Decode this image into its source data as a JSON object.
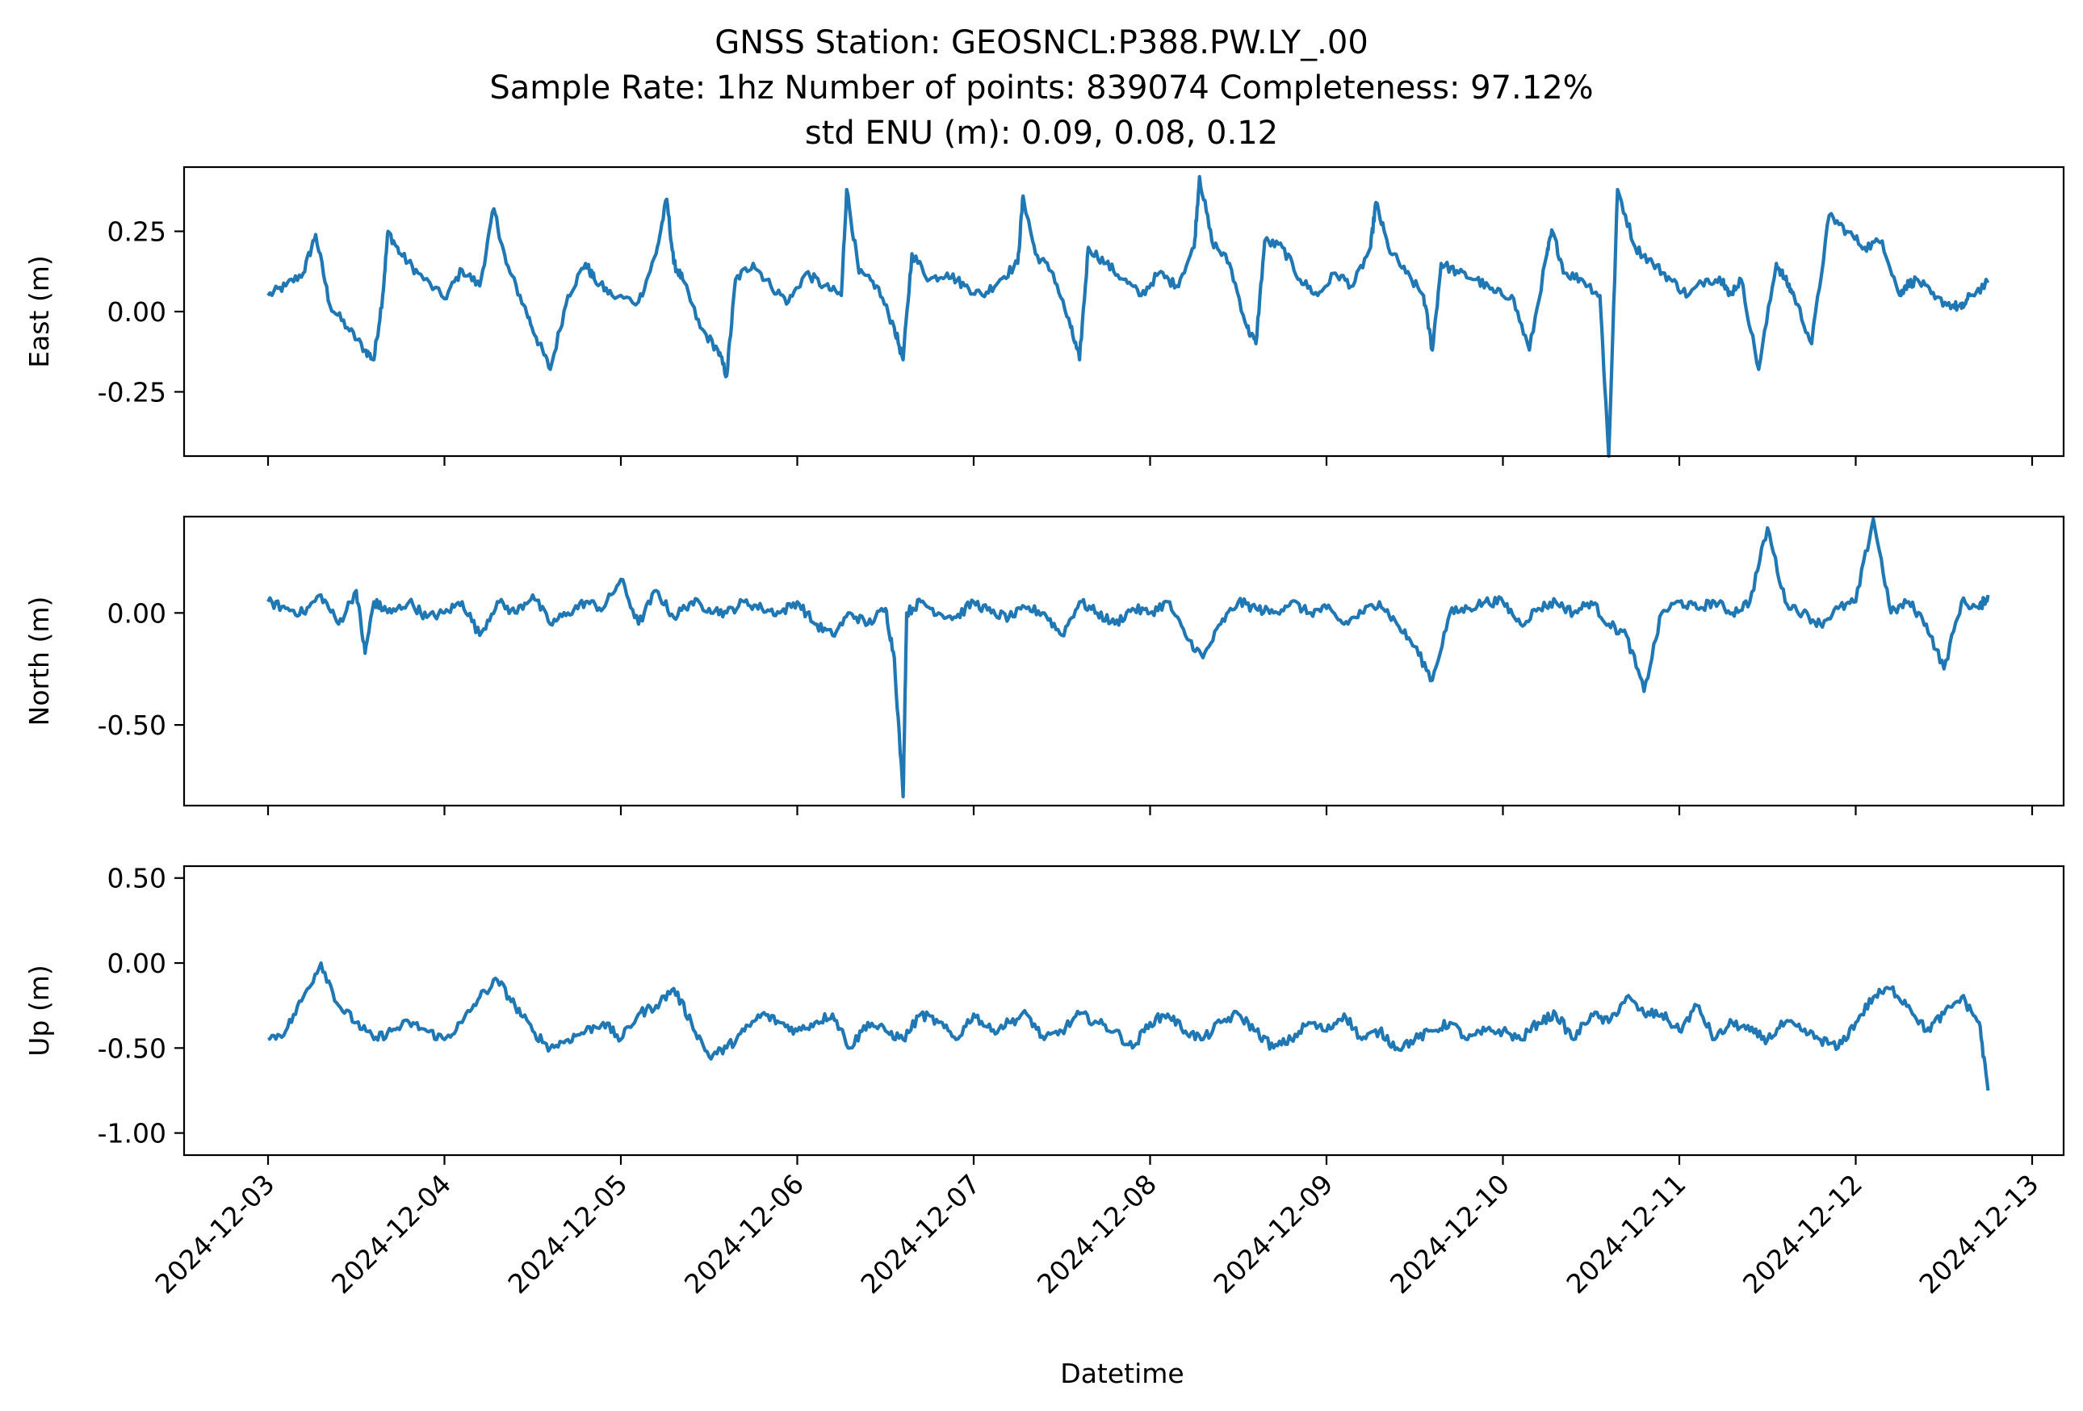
{
  "chart_data": {
    "type": "line",
    "title_lines": [
      "GNSS Station: GEOSNCL:P388.PW.LY_.00",
      "Sample Rate: 1hz   Number of points: 839074    Completeness:  97.12%",
      "std ENU (m):  0.09, 0.08, 0.12"
    ],
    "xlabel": "Datetime",
    "x_ticks": [
      "2024-12-03",
      "2024-12-04",
      "2024-12-05",
      "2024-12-06",
      "2024-12-07",
      "2024-12-08",
      "2024-12-09",
      "2024-12-10",
      "2024-12-11",
      "2024-12-12",
      "2024-12-13"
    ],
    "x_range": [
      "2024-12-02T12:00",
      "2024-12-13T06:00"
    ],
    "line_color": "#1f77b4",
    "grid": false,
    "legend": "none",
    "panels": [
      {
        "id": "east",
        "ylabel": "East (m)",
        "ylim": [
          -0.45,
          0.45
        ],
        "yticks": [
          0.25,
          0.0,
          -0.25
        ],
        "ytick_labels": [
          "0.25",
          "0.00",
          "-0.25"
        ],
        "series": [
          {
            "x_days": [
              0,
              0.1,
              0.2,
              0.27,
              0.35,
              0.45,
              0.55,
              0.6,
              0.65,
              0.68,
              0.75,
              0.85,
              1.0,
              1.1,
              1.2,
              1.28,
              1.35,
              1.45,
              1.52,
              1.6,
              1.7,
              1.8,
              1.85,
              1.95,
              2.1,
              2.2,
              2.26,
              2.3,
              2.35,
              2.45,
              2.55,
              2.6,
              2.65,
              2.75,
              2.85,
              2.95,
              3.05,
              3.15,
              3.25,
              3.28,
              3.35,
              3.45,
              3.55,
              3.6,
              3.65,
              3.75,
              3.85,
              3.95,
              4.05,
              4.15,
              4.25,
              4.28,
              4.35,
              4.45,
              4.55,
              4.6,
              4.65,
              4.75,
              4.85,
              4.95,
              5.05,
              5.15,
              5.25,
              5.28,
              5.35,
              5.45,
              5.55,
              5.6,
              5.65,
              5.75,
              5.85,
              5.95,
              6.05,
              6.15,
              6.25,
              6.28,
              6.35,
              6.45,
              6.55,
              6.6,
              6.65,
              6.75,
              6.85,
              6.95,
              7.05,
              7.15,
              7.25,
              7.28,
              7.35,
              7.45,
              7.55,
              7.6,
              7.65,
              7.75,
              7.85,
              7.95,
              8.05,
              8.15,
              8.25,
              8.28,
              8.35,
              8.45,
              8.55,
              8.6,
              8.65,
              8.75,
              8.85,
              8.95,
              9.05,
              9.15,
              9.25,
              9.28,
              9.35,
              9.45,
              9.55,
              9.6,
              9.65,
              9.75
            ],
            "values": [
              0.05,
              0.08,
              0.12,
              0.24,
              0.02,
              -0.05,
              -0.12,
              -0.15,
              0.05,
              0.25,
              0.18,
              0.12,
              0.04,
              0.13,
              0.08,
              0.32,
              0.15,
              0.02,
              -0.08,
              -0.18,
              0.05,
              0.15,
              0.1,
              0.05,
              0.03,
              0.18,
              0.35,
              0.15,
              0.1,
              -0.05,
              -0.12,
              -0.2,
              0.1,
              0.15,
              0.08,
              0.03,
              0.12,
              0.08,
              0.05,
              0.38,
              0.12,
              0.08,
              -0.05,
              -0.15,
              0.18,
              0.1,
              0.12,
              0.08,
              0.05,
              0.1,
              0.15,
              0.36,
              0.18,
              0.12,
              -0.05,
              -0.15,
              0.2,
              0.15,
              0.1,
              0.05,
              0.12,
              0.08,
              0.2,
              0.42,
              0.22,
              0.15,
              -0.05,
              -0.1,
              0.22,
              0.2,
              0.1,
              0.05,
              0.12,
              0.08,
              0.2,
              0.34,
              0.2,
              0.12,
              0.05,
              -0.12,
              0.15,
              0.12,
              0.1,
              0.06,
              0.05,
              -0.12,
              0.18,
              0.25,
              0.12,
              0.1,
              0.05,
              -0.45,
              0.38,
              0.2,
              0.15,
              0.1,
              0.05,
              0.1,
              0.1,
              0.05,
              0.1,
              -0.18,
              0.15,
              0.1,
              0.05,
              -0.1,
              0.3,
              0.25,
              0.2,
              0.22,
              0.05,
              0.08,
              0.1,
              0.04,
              0.02,
              0.01,
              0.05,
              0.09
            ]
          }
        ]
      },
      {
        "id": "north",
        "ylabel": "North (m)",
        "ylim": [
          -0.86,
          0.43
        ],
        "yticks": [
          0.0,
          -0.5
        ],
        "ytick_labels": [
          "0.00",
          "-0.50"
        ],
        "series": [
          {
            "x_days": [
              0,
              0.1,
              0.2,
              0.3,
              0.4,
              0.5,
              0.55,
              0.6,
              0.65,
              0.7,
              0.8,
              0.9,
              1.0,
              1.1,
              1.2,
              1.3,
              1.4,
              1.5,
              1.6,
              1.7,
              1.8,
              1.9,
              2.0,
              2.1,
              2.2,
              2.3,
              2.4,
              2.5,
              2.6,
              2.7,
              2.8,
              2.9,
              3.0,
              3.1,
              3.2,
              3.3,
              3.4,
              3.5,
              3.55,
              3.6,
              3.62,
              3.7,
              3.8,
              3.9,
              4.0,
              4.1,
              4.2,
              4.3,
              4.4,
              4.5,
              4.6,
              4.7,
              4.8,
              4.9,
              5.0,
              5.1,
              5.2,
              5.3,
              5.4,
              5.5,
              5.6,
              5.7,
              5.8,
              5.9,
              6.0,
              6.1,
              6.2,
              6.3,
              6.4,
              6.5,
              6.6,
              6.7,
              6.8,
              6.9,
              7.0,
              7.1,
              7.2,
              7.3,
              7.4,
              7.5,
              7.6,
              7.7,
              7.8,
              7.9,
              8.0,
              8.1,
              8.2,
              8.3,
              8.4,
              8.5,
              8.6,
              8.7,
              8.8,
              8.9,
              9.0,
              9.1,
              9.2,
              9.3,
              9.4,
              9.5,
              9.6,
              9.7,
              9.75
            ],
            "values": [
              0.05,
              0.02,
              0.0,
              0.08,
              -0.05,
              0.1,
              -0.18,
              0.05,
              0.02,
              0.0,
              0.05,
              -0.02,
              0.0,
              0.05,
              -0.1,
              0.05,
              0.0,
              0.08,
              -0.05,
              0.0,
              0.05,
              0.02,
              0.15,
              -0.05,
              0.1,
              -0.02,
              0.05,
              0.02,
              0.0,
              0.05,
              0.02,
              0.0,
              0.05,
              -0.05,
              -0.1,
              0.0,
              -0.05,
              0.02,
              -0.2,
              -0.82,
              0.0,
              0.05,
              0.0,
              -0.02,
              0.05,
              0.0,
              -0.02,
              0.02,
              0.0,
              -0.1,
              0.05,
              0.0,
              -0.05,
              0.02,
              0.0,
              0.05,
              -0.1,
              -0.2,
              -0.05,
              0.05,
              0.02,
              0.0,
              0.05,
              0.0,
              0.02,
              -0.05,
              0.0,
              0.05,
              -0.05,
              -0.15,
              -0.3,
              0.0,
              0.02,
              0.05,
              0.05,
              -0.05,
              0.02,
              0.05,
              0.0,
              0.05,
              -0.05,
              -0.1,
              -0.35,
              0.0,
              0.05,
              0.02,
              0.05,
              0.0,
              0.05,
              0.38,
              0.05,
              0.0,
              -0.05,
              0.02,
              0.05,
              0.42,
              0.0,
              0.05,
              -0.05,
              -0.25,
              0.05,
              0.02,
              0.08
            ]
          }
        ]
      },
      {
        "id": "up",
        "ylabel": "Up (m)",
        "ylim": [
          -1.13,
          0.57
        ],
        "yticks": [
          0.5,
          0.0,
          -0.5,
          -1.0
        ],
        "ytick_labels": [
          "0.50",
          "0.00",
          "-0.50",
          "-1.00"
        ],
        "series": [
          {
            "x_days": [
              0,
              0.1,
              0.2,
              0.3,
              0.4,
              0.5,
              0.6,
              0.7,
              0.8,
              0.9,
              1.0,
              1.1,
              1.2,
              1.3,
              1.4,
              1.5,
              1.6,
              1.7,
              1.8,
              1.9,
              2.0,
              2.1,
              2.2,
              2.3,
              2.4,
              2.5,
              2.6,
              2.7,
              2.8,
              2.9,
              3.0,
              3.1,
              3.2,
              3.3,
              3.4,
              3.5,
              3.6,
              3.7,
              3.8,
              3.9,
              4.0,
              4.1,
              4.2,
              4.3,
              4.4,
              4.5,
              4.6,
              4.7,
              4.8,
              4.9,
              5.0,
              5.1,
              5.2,
              5.3,
              5.4,
              5.5,
              5.6,
              5.7,
              5.8,
              5.9,
              6.0,
              6.1,
              6.2,
              6.3,
              6.4,
              6.5,
              6.6,
              6.7,
              6.8,
              6.9,
              7.0,
              7.1,
              7.2,
              7.3,
              7.4,
              7.5,
              7.6,
              7.7,
              7.8,
              7.9,
              8.0,
              8.1,
              8.2,
              8.3,
              8.4,
              8.5,
              8.6,
              8.7,
              8.8,
              8.9,
              9.0,
              9.1,
              9.2,
              9.3,
              9.4,
              9.5,
              9.6,
              9.7,
              9.75
            ],
            "values": [
              -0.45,
              -0.4,
              -0.2,
              0.0,
              -0.25,
              -0.35,
              -0.45,
              -0.4,
              -0.35,
              -0.4,
              -0.45,
              -0.35,
              -0.2,
              -0.1,
              -0.25,
              -0.4,
              -0.5,
              -0.45,
              -0.4,
              -0.35,
              -0.45,
              -0.3,
              -0.25,
              -0.15,
              -0.35,
              -0.55,
              -0.5,
              -0.4,
              -0.3,
              -0.35,
              -0.4,
              -0.35,
              -0.3,
              -0.5,
              -0.35,
              -0.4,
              -0.45,
              -0.3,
              -0.35,
              -0.45,
              -0.3,
              -0.4,
              -0.35,
              -0.3,
              -0.45,
              -0.4,
              -0.3,
              -0.35,
              -0.4,
              -0.5,
              -0.35,
              -0.3,
              -0.4,
              -0.45,
              -0.35,
              -0.3,
              -0.4,
              -0.5,
              -0.45,
              -0.35,
              -0.4,
              -0.3,
              -0.45,
              -0.4,
              -0.5,
              -0.45,
              -0.4,
              -0.35,
              -0.45,
              -0.4,
              -0.4,
              -0.45,
              -0.35,
              -0.3,
              -0.45,
              -0.3,
              -0.35,
              -0.2,
              -0.3,
              -0.3,
              -0.4,
              -0.25,
              -0.45,
              -0.35,
              -0.4,
              -0.45,
              -0.35,
              -0.4,
              -0.45,
              -0.5,
              -0.35,
              -0.2,
              -0.15,
              -0.25,
              -0.4,
              -0.3,
              -0.2,
              -0.35,
              -0.75
            ]
          }
        ]
      }
    ]
  }
}
